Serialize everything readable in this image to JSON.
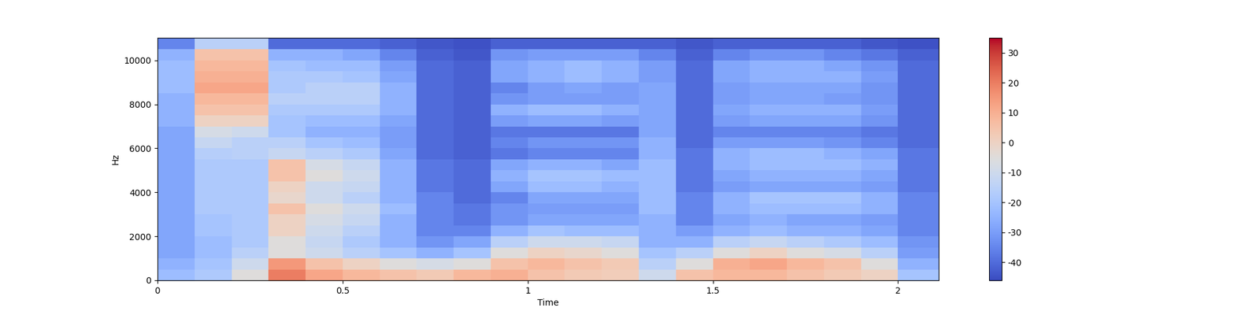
{
  "chart_data": {
    "type": "heatmap",
    "x_label": "Time",
    "y_label": "Hz",
    "xlim": [
      0,
      2.11
    ],
    "ylim": [
      0,
      11025
    ],
    "xticks": [
      0,
      0.5,
      1,
      1.5,
      2
    ],
    "yticks": [
      0,
      2000,
      4000,
      6000,
      8000,
      10000
    ],
    "color": "coolwarm",
    "color_range": [
      -46,
      35
    ],
    "color_ticks": [
      -40,
      -30,
      -20,
      -10,
      0,
      10,
      20,
      30
    ],
    "time_edges": [
      0,
      0.1,
      0.2,
      0.3,
      0.4,
      0.5,
      0.6,
      0.7,
      0.8,
      0.9,
      1.0,
      1.1,
      1.2,
      1.3,
      1.4,
      1.5,
      1.6,
      1.7,
      1.8,
      1.9,
      2.0,
      2.11
    ],
    "frequency_edges": [
      0,
      500,
      1000,
      1500,
      2000,
      2500,
      3000,
      3500,
      4000,
      4500,
      5000,
      5500,
      6000,
      6500,
      7000,
      7500,
      8000,
      8500,
      9000,
      9500,
      10000,
      10500,
      11025
    ],
    "cells": [
      [
        -22,
        -18,
        -5,
        20,
        12,
        8,
        5,
        3,
        8,
        10,
        5,
        3,
        2,
        -10,
        5,
        8,
        8,
        5,
        3,
        0,
        -20
      ],
      [
        -25,
        -20,
        -10,
        15,
        5,
        0,
        -5,
        -8,
        -5,
        5,
        8,
        5,
        3,
        -15,
        -5,
        10,
        12,
        8,
        5,
        -5,
        -25
      ],
      [
        -28,
        -22,
        -15,
        -5,
        -10,
        -15,
        -20,
        -25,
        -20,
        -5,
        0,
        -2,
        -5,
        -20,
        -15,
        -5,
        0,
        -5,
        -8,
        -15,
        -30
      ],
      [
        -28,
        -22,
        -18,
        -5,
        -12,
        -18,
        -25,
        -32,
        -28,
        -15,
        -10,
        -10,
        -12,
        -25,
        -25,
        -15,
        -12,
        -15,
        -18,
        -22,
        -32
      ],
      [
        -28,
        -20,
        -18,
        0,
        -10,
        -15,
        -25,
        -35,
        -35,
        -25,
        -20,
        -22,
        -22,
        -25,
        -30,
        -25,
        -22,
        -25,
        -25,
        -28,
        -35
      ],
      [
        -28,
        -20,
        -18,
        0,
        -8,
        -12,
        -25,
        -35,
        -38,
        -32,
        -28,
        -28,
        -28,
        -25,
        -35,
        -28,
        -25,
        -28,
        -28,
        -30,
        -35
      ],
      [
        -28,
        -18,
        -18,
        5,
        -5,
        -10,
        -22,
        -35,
        -38,
        -32,
        -30,
        -30,
        -30,
        -22,
        -35,
        -25,
        -22,
        -22,
        -22,
        -25,
        -35
      ],
      [
        -28,
        -18,
        -18,
        -2,
        -10,
        -15,
        -25,
        -35,
        -40,
        -35,
        -28,
        -28,
        -28,
        -22,
        -35,
        -25,
        -20,
        -20,
        -20,
        -25,
        -35
      ],
      [
        -28,
        -18,
        -18,
        0,
        -10,
        -12,
        -25,
        -38,
        -40,
        -28,
        -22,
        -22,
        -25,
        -22,
        -38,
        -30,
        -28,
        -28,
        -28,
        -30,
        -38
      ],
      [
        -28,
        -18,
        -18,
        5,
        -5,
        -10,
        -25,
        -38,
        -40,
        -25,
        -20,
        -20,
        -22,
        -22,
        -38,
        -28,
        -25,
        -25,
        -25,
        -28,
        -38
      ],
      [
        -28,
        -18,
        -18,
        5,
        -8,
        -12,
        -25,
        -38,
        -40,
        -28,
        -25,
        -25,
        -28,
        -22,
        -38,
        -25,
        -22,
        -22,
        -22,
        -25,
        -38
      ],
      [
        -28,
        -16,
        -15,
        -12,
        -15,
        -18,
        -28,
        -40,
        -42,
        -38,
        -35,
        -35,
        -35,
        -25,
        -38,
        -25,
        -22,
        -22,
        -25,
        -28,
        -38
      ],
      [
        -28,
        -12,
        -15,
        -15,
        -20,
        -22,
        -30,
        -40,
        -42,
        -35,
        -32,
        -32,
        -32,
        -25,
        -40,
        -30,
        -30,
        -30,
        -32,
        -35,
        -40
      ],
      [
        -28,
        -8,
        -10,
        -20,
        -25,
        -25,
        -30,
        -40,
        -42,
        -38,
        -38,
        -38,
        -38,
        -28,
        -40,
        -35,
        -35,
        -35,
        -35,
        -38,
        -40
      ],
      [
        -25,
        0,
        0,
        -20,
        -22,
        -22,
        -28,
        -40,
        -42,
        -30,
        -28,
        -28,
        -30,
        -28,
        -40,
        -30,
        -28,
        -28,
        -28,
        -32,
        -40
      ],
      [
        -25,
        5,
        5,
        -18,
        -18,
        -18,
        -25,
        -40,
        -42,
        -25,
        -22,
        -22,
        -25,
        -28,
        -40,
        -28,
        -25,
        -25,
        -25,
        -30,
        -40
      ],
      [
        -25,
        8,
        8,
        -15,
        -15,
        -15,
        -25,
        -40,
        -42,
        -32,
        -30,
        -30,
        -30,
        -28,
        -40,
        -30,
        -28,
        -28,
        -30,
        -32,
        -40
      ],
      [
        -22,
        12,
        12,
        -18,
        -15,
        -15,
        -25,
        -40,
        -42,
        -35,
        -30,
        -28,
        -30,
        -28,
        -40,
        -30,
        -28,
        -28,
        -28,
        -32,
        -40
      ],
      [
        -22,
        10,
        10,
        -18,
        -18,
        -20,
        -28,
        -40,
        -42,
        -28,
        -25,
        -22,
        -25,
        -30,
        -40,
        -28,
        -25,
        -25,
        -25,
        -30,
        -40
      ],
      [
        -22,
        8,
        8,
        -20,
        -22,
        -22,
        -30,
        -40,
        -42,
        -28,
        -25,
        -22,
        -25,
        -30,
        -40,
        -28,
        -25,
        -25,
        -28,
        -32,
        -40
      ],
      [
        -25,
        5,
        5,
        -25,
        -25,
        -28,
        -35,
        -42,
        -44,
        -32,
        -30,
        -30,
        -30,
        -35,
        -42,
        -35,
        -32,
        -32,
        -35,
        -38,
        -42
      ],
      [
        -35,
        -15,
        -15,
        -40,
        -40,
        -40,
        -42,
        -44,
        -45,
        -42,
        -42,
        -42,
        -42,
        -42,
        -44,
        -42,
        -42,
        -42,
        -42,
        -44,
        -45
      ]
    ]
  }
}
